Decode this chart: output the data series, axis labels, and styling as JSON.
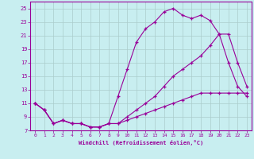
{
  "xlabel": "Windchill (Refroidissement éolien,°C)",
  "bg_color": "#c8eef0",
  "line_color": "#990099",
  "grid_color": "#aacccc",
  "xlim": [
    -0.5,
    23.5
  ],
  "ylim": [
    7,
    26
  ],
  "xticks": [
    0,
    1,
    2,
    3,
    4,
    5,
    6,
    7,
    8,
    9,
    10,
    11,
    12,
    13,
    14,
    15,
    16,
    17,
    18,
    19,
    20,
    21,
    22,
    23
  ],
  "yticks": [
    7,
    9,
    11,
    13,
    15,
    17,
    19,
    21,
    23,
    25
  ],
  "series1_x": [
    0,
    1,
    2,
    3,
    4,
    5,
    6,
    7,
    8,
    9,
    10,
    11,
    12,
    13,
    14,
    15,
    16,
    17,
    18,
    19,
    20,
    21,
    22,
    23
  ],
  "series1_y": [
    11,
    10,
    8,
    8.5,
    8,
    8,
    7.5,
    7.5,
    8,
    12,
    16,
    20,
    22,
    23,
    24.5,
    25,
    24,
    23.5,
    24,
    23.2,
    21.2,
    17,
    13.5,
    12
  ],
  "series2_x": [
    0,
    1,
    2,
    3,
    4,
    5,
    6,
    7,
    8,
    9,
    10,
    11,
    12,
    13,
    14,
    15,
    16,
    17,
    18,
    19,
    20,
    21,
    22,
    23
  ],
  "series2_y": [
    11,
    10,
    8,
    8.5,
    8,
    8,
    7.5,
    7.5,
    8,
    8,
    9,
    10,
    11,
    12,
    13.5,
    15,
    16,
    17,
    18,
    19.5,
    21.2,
    21.2,
    17,
    13.5
  ],
  "series3_x": [
    0,
    1,
    2,
    3,
    4,
    5,
    6,
    7,
    8,
    9,
    10,
    11,
    12,
    13,
    14,
    15,
    16,
    17,
    18,
    19,
    20,
    21,
    22,
    23
  ],
  "series3_y": [
    11,
    10,
    8,
    8.5,
    8,
    8,
    7.5,
    7.5,
    8,
    8,
    8.5,
    9,
    9.5,
    10,
    10.5,
    11,
    11.5,
    12,
    12.5,
    12.5,
    12.5,
    12.5,
    12.5,
    12.5
  ]
}
